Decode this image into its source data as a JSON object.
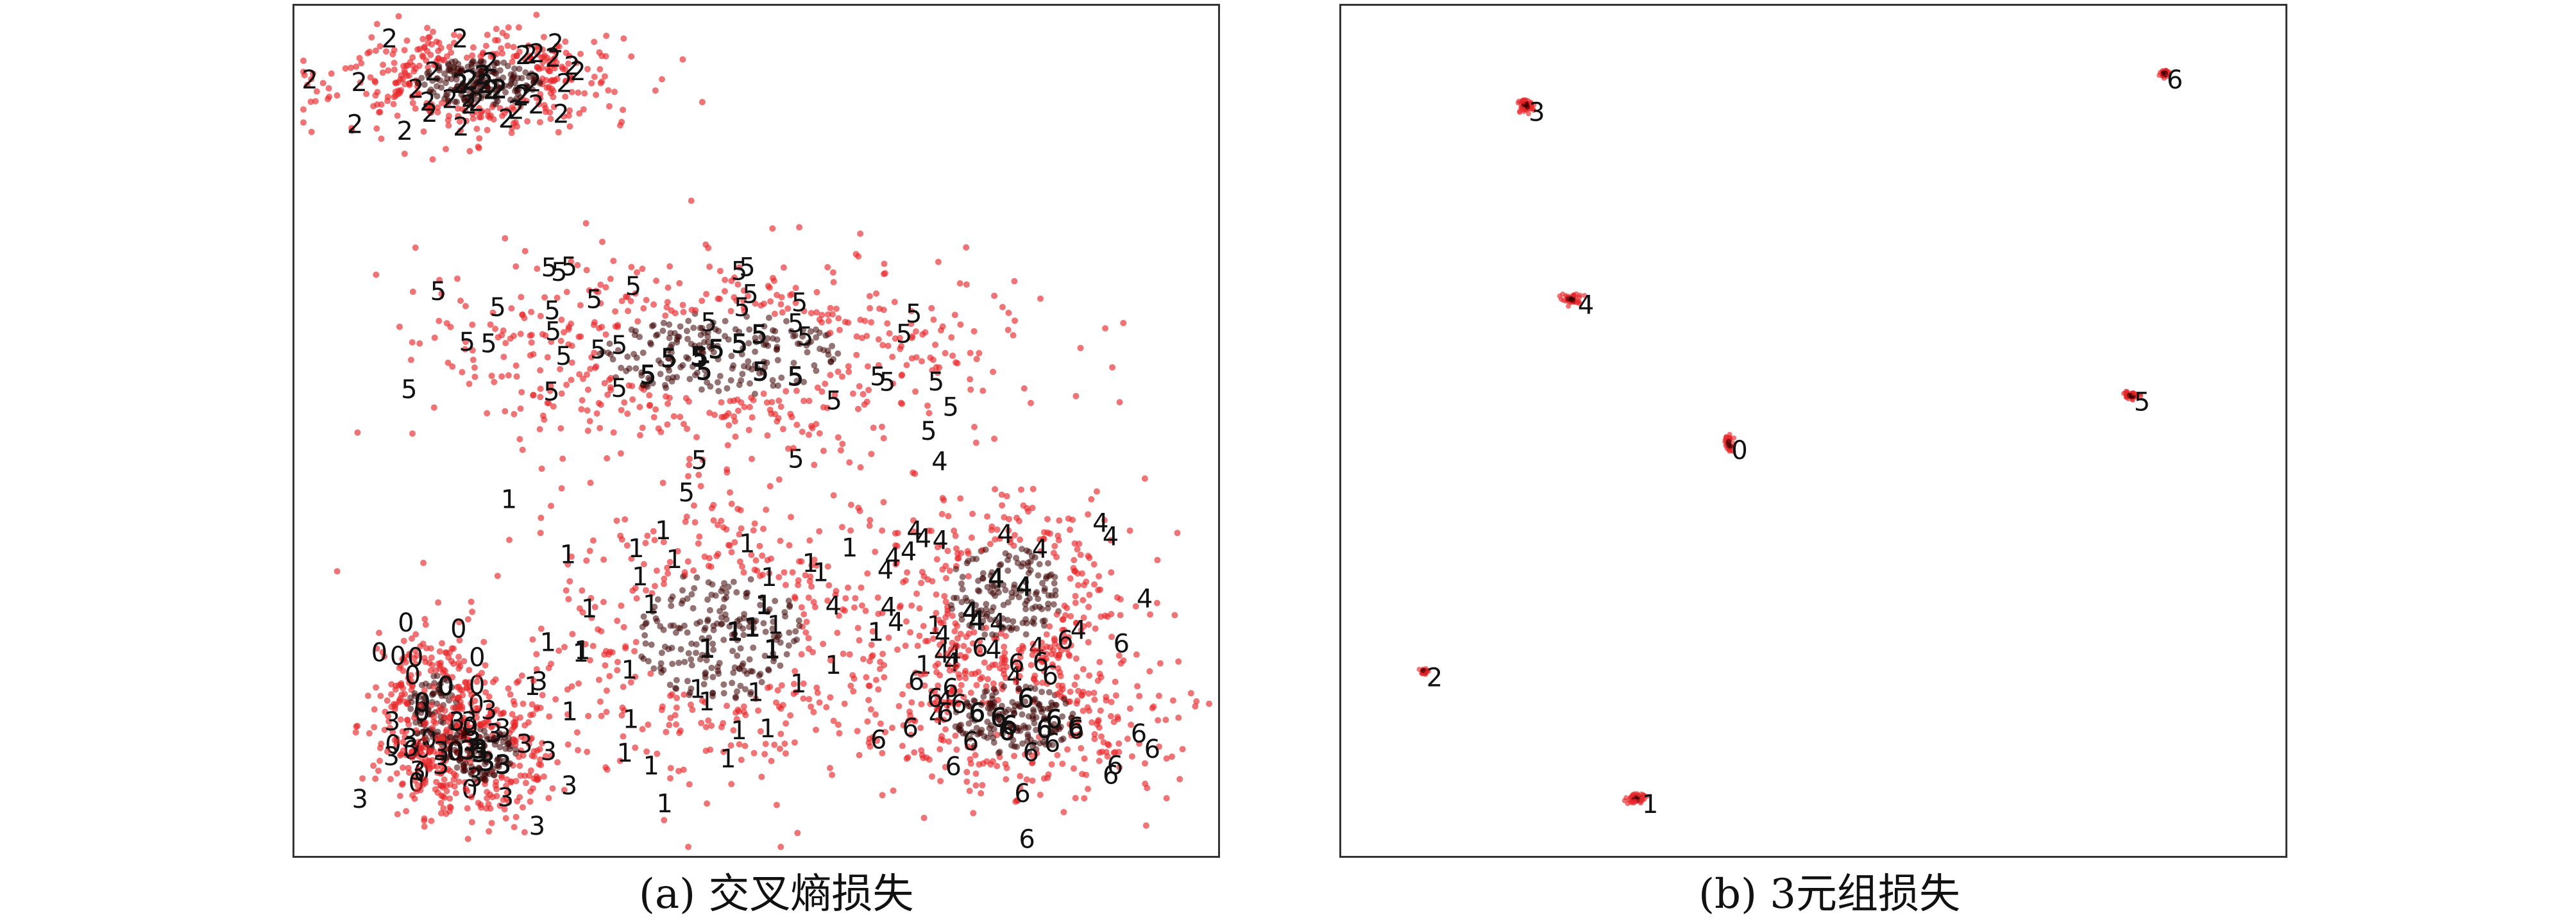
{
  "captions": {
    "a": "(a) 交叉熵损失",
    "b": "(b) 3元组损失"
  },
  "colors": {
    "point": "#e8282b",
    "core": "#3a0000",
    "label": "#111111"
  },
  "chart_data": [
    {
      "type": "scatter",
      "panel": "a",
      "title": "",
      "xlabel": "",
      "ylabel": "",
      "grid": false,
      "clusters": [
        {
          "label": "2",
          "center": [
            0.2,
            0.09
          ],
          "spread": [
            0.075,
            0.03
          ],
          "count": 520
        },
        {
          "label": "5",
          "center": [
            0.46,
            0.41
          ],
          "spread": [
            0.15,
            0.055
          ],
          "count": 650
        },
        {
          "label": "1",
          "center": [
            0.46,
            0.74
          ],
          "spread": [
            0.1,
            0.085
          ],
          "count": 560
        },
        {
          "label": "4",
          "center": [
            0.77,
            0.69
          ],
          "spread": [
            0.07,
            0.06
          ],
          "count": 420
        },
        {
          "label": "6",
          "center": [
            0.78,
            0.84
          ],
          "spread": [
            0.075,
            0.045
          ],
          "count": 450
        },
        {
          "label": "0",
          "center": [
            0.15,
            0.83
          ],
          "spread": [
            0.03,
            0.05
          ],
          "count": 320
        },
        {
          "label": "3",
          "center": [
            0.2,
            0.88
          ],
          "spread": [
            0.045,
            0.035
          ],
          "count": 360
        }
      ]
    },
    {
      "type": "scatter",
      "panel": "b",
      "title": "",
      "xlabel": "",
      "ylabel": "",
      "grid": false,
      "clusters": [
        {
          "label": "3",
          "center": [
            0.195,
            0.118
          ],
          "spread": [
            0.004,
            0.004
          ],
          "count": 60
        },
        {
          "label": "6",
          "center": [
            0.872,
            0.08
          ],
          "spread": [
            0.002,
            0.002
          ],
          "count": 40
        },
        {
          "label": "4",
          "center": [
            0.245,
            0.345
          ],
          "spread": [
            0.006,
            0.003
          ],
          "count": 50
        },
        {
          "label": "5",
          "center": [
            0.836,
            0.459
          ],
          "spread": [
            0.004,
            0.002
          ],
          "count": 50
        },
        {
          "label": "0",
          "center": [
            0.411,
            0.516
          ],
          "spread": [
            0.002,
            0.005
          ],
          "count": 40
        },
        {
          "label": "2",
          "center": [
            0.088,
            0.783
          ],
          "spread": [
            0.002,
            0.002
          ],
          "count": 30
        },
        {
          "label": "1",
          "center": [
            0.313,
            0.932
          ],
          "spread": [
            0.006,
            0.003
          ],
          "count": 50
        }
      ]
    }
  ]
}
